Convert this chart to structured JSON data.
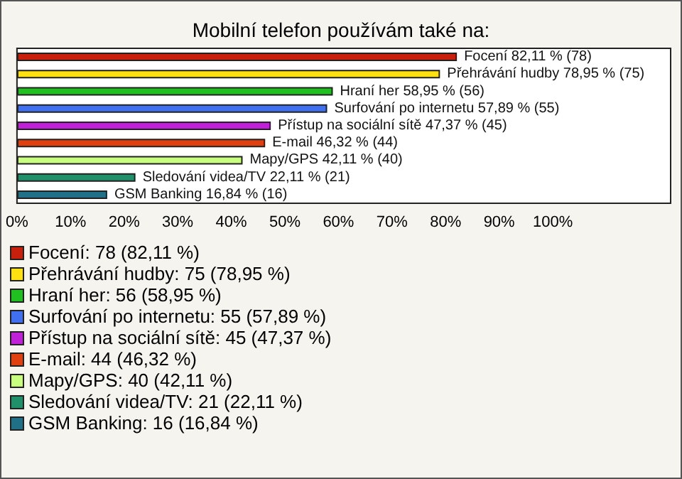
{
  "chart_data": {
    "type": "bar",
    "orientation": "horizontal",
    "title": "Mobilní telefon používám také na:",
    "categories": [
      null,
      null,
      null,
      null,
      null,
      null,
      null,
      null,
      null
    ],
    "values": [
      82.11,
      78.95,
      58.95,
      57.89,
      47.37,
      46.32,
      42.11,
      22.11,
      16.84
    ],
    "colors": [
      "#c8200c",
      "#ffe010",
      "#20c020",
      "#4070f0",
      "#c020d8",
      "#e04010",
      "#c8ff80",
      "#20906a",
      "#207088"
    ],
    "value_labels": [
      "Focení 82,11 % (78)",
      "Přehrávání hudby 78,95 % (75)",
      "Hraní her 58,95 % (56)",
      "Surfování po internetu 57,89 % (55)",
      "Přístup na sociální sítě 47,37 % (45)",
      "E-mail 46,32 % (44)",
      "Mapy/GPS 42,11 % (40)",
      "Sledování videa/TV 22,11 % (21)",
      "GSM Banking 16,84 % (16)"
    ],
    "annotations": [
      "Focení: 78 (82,11 %)",
      "Přehrávání hudby: 75 (78,95 %)",
      "Hraní her: 56 (58,95 %)",
      "Surfování po internetu: 55 (57,89 %)",
      "Přístup na sociální sítě: 45 (47,37 %)",
      "E-mail: 44 (46,32 %)",
      "Mapy/GPS: 40 (42,11 %)",
      "Sledování videa/TV: 21 (22,11 %)",
      "GSM Banking: 16 (16,84 %)"
    ],
    "xlim": [
      0,
      122
    ],
    "xticks": [
      {
        "value": 0,
        "label": "0%"
      },
      {
        "value": 10,
        "label": "10%"
      },
      {
        "value": 20,
        "label": "20%"
      },
      {
        "value": 30,
        "label": "30%"
      },
      {
        "value": 40,
        "label": "40%"
      },
      {
        "value": 50,
        "label": "50%"
      },
      {
        "value": 60,
        "label": "60%"
      },
      {
        "value": 70,
        "label": "70%"
      },
      {
        "value": 80,
        "label": "80%"
      },
      {
        "value": 90,
        "label": "90%"
      },
      {
        "value": 100,
        "label": "100%"
      }
    ],
    "tick_labels": "x",
    "grid": false
  }
}
